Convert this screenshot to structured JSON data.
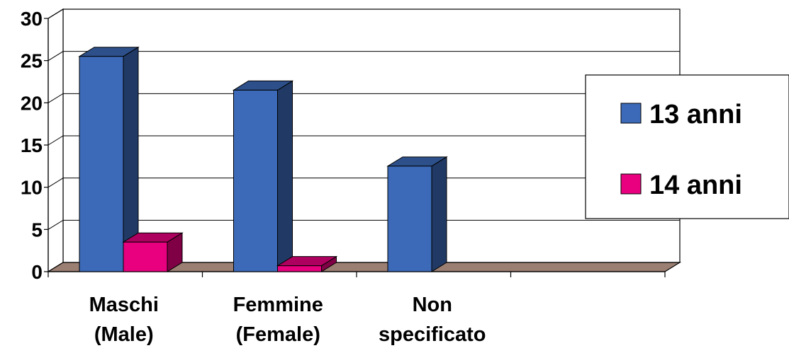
{
  "chart_data": {
    "type": "bar",
    "title": "",
    "xlabel": "",
    "ylabel": "",
    "ylim": [
      0,
      30
    ],
    "yticks": [
      0,
      5,
      10,
      15,
      20,
      25,
      30
    ],
    "grid": true,
    "legend_position": "right",
    "categories": [
      [
        "Maschi",
        "(Male)"
      ],
      [
        "Femmine",
        "(Female)"
      ],
      [
        "Non",
        "specificato"
      ],
      [
        "",
        ""
      ]
    ],
    "series": [
      {
        "name": "13 anni",
        "values": [
          25.5,
          21.5,
          12.5,
          null
        ],
        "color": "#3c6ab8"
      },
      {
        "name": "14 anni",
        "values": [
          3.5,
          0.7,
          null,
          null
        ],
        "color": "#e8007e"
      }
    ]
  }
}
